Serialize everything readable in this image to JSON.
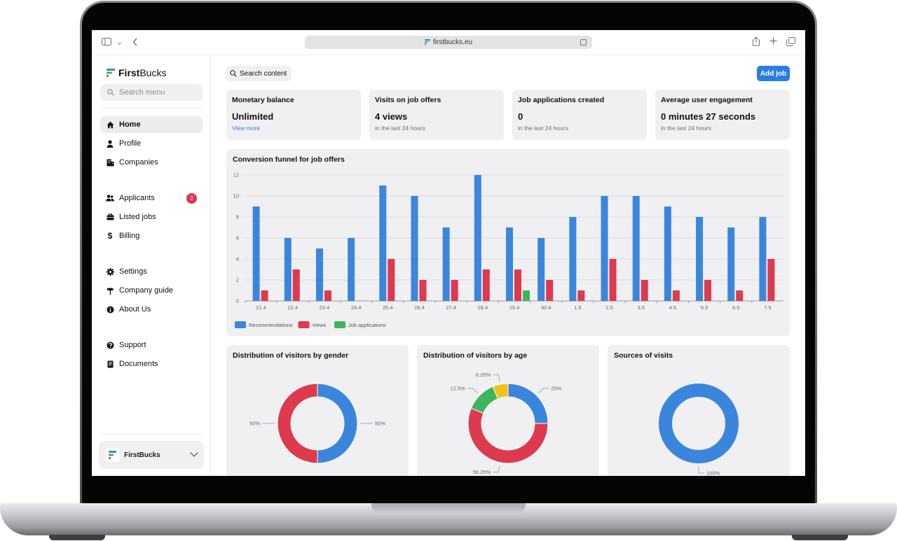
{
  "browser": {
    "url": "firstbucks.eu"
  },
  "sidebar": {
    "brand_first": "First",
    "brand_second": "Bucks",
    "search_placeholder": "Search menu",
    "items": [
      {
        "label": "Home",
        "icon": "home-icon"
      },
      {
        "label": "Profile",
        "icon": "user-icon"
      },
      {
        "label": "Companies",
        "icon": "building-icon"
      },
      {
        "label": "Applicants",
        "icon": "users-icon",
        "badge": "2"
      },
      {
        "label": "Listed jobs",
        "icon": "briefcase-icon"
      },
      {
        "label": "Billing",
        "icon": "dollar-icon"
      },
      {
        "label": "Settings",
        "icon": "gear-icon"
      },
      {
        "label": "Company guide",
        "icon": "signpost-icon"
      },
      {
        "label": "About Us",
        "icon": "info-icon"
      },
      {
        "label": "Support",
        "icon": "help-icon"
      },
      {
        "label": "Documents",
        "icon": "document-icon"
      }
    ],
    "org_name": "FirstBucks"
  },
  "header": {
    "search_label": "Search content",
    "add_job_label": "Add job"
  },
  "stats": [
    {
      "title": "Monetary balance",
      "value": "Unlimited",
      "link": "View more"
    },
    {
      "title": "Visits on job offers",
      "value": "4 views",
      "sub": "in the last 24 hours"
    },
    {
      "title": "Job applications created",
      "value": "0",
      "sub": "in the last 24 hours"
    },
    {
      "title": "Average user engagement",
      "value": "0 minutes 27 seconds",
      "sub": "in the last 24 hours"
    }
  ],
  "colors": {
    "blue": "#3b86dd",
    "red": "#dd3a4e",
    "green": "#3fb45b",
    "yellow": "#f1c21b",
    "accent": "#2b7de1"
  },
  "chart_data": [
    {
      "type": "bar",
      "title": "Conversion funnel for job offers",
      "categories": [
        "21.4",
        "22.4",
        "23.4",
        "24.4",
        "25.4",
        "26.4",
        "27.4",
        "28.4",
        "29.4",
        "30.4",
        "1.5",
        "2.5",
        "3.5",
        "4.5",
        "5.5",
        "6.5",
        "7.5"
      ],
      "series": [
        {
          "name": "Recommendations",
          "color": "#3b86dd",
          "values": [
            9,
            6,
            5,
            6,
            11,
            10,
            7,
            12,
            7,
            6,
            8,
            10,
            10,
            9,
            8,
            7,
            8
          ]
        },
        {
          "name": "Views",
          "color": "#dd3a4e",
          "values": [
            1,
            3,
            1,
            0,
            4,
            2,
            2,
            3,
            3,
            2,
            1,
            4,
            2,
            1,
            2,
            1,
            4
          ]
        },
        {
          "name": "Job applications",
          "color": "#3fb45b",
          "values": [
            0,
            0,
            0,
            0,
            0,
            0,
            0,
            0,
            1,
            0,
            0,
            0,
            0,
            0,
            0,
            0,
            0
          ]
        }
      ],
      "ylim": [
        0,
        12
      ],
      "yticks": [
        0,
        2,
        4,
        6,
        8,
        10,
        12
      ],
      "grid": true,
      "legend": "bottom-left"
    },
    {
      "type": "pie",
      "title": "Distribution of visitors by gender",
      "slices": [
        {
          "value": 50,
          "label": "50%",
          "color": "#3b86dd"
        },
        {
          "value": 50,
          "label": "50%",
          "color": "#dd3a4e"
        }
      ]
    },
    {
      "type": "pie",
      "title": "Distribution of visitors by age",
      "slices": [
        {
          "value": 25,
          "label": "25%",
          "color": "#3b86dd"
        },
        {
          "value": 56.25,
          "label": "56.25%",
          "color": "#dd3a4e"
        },
        {
          "value": 12.5,
          "label": "12.5%",
          "color": "#3fb45b"
        },
        {
          "value": 6.25,
          "label": "6.25%",
          "color": "#f1c21b"
        }
      ]
    },
    {
      "type": "pie",
      "title": "Sources of visits",
      "slices": [
        {
          "value": 100,
          "label": "100%",
          "color": "#3b86dd"
        }
      ]
    }
  ]
}
